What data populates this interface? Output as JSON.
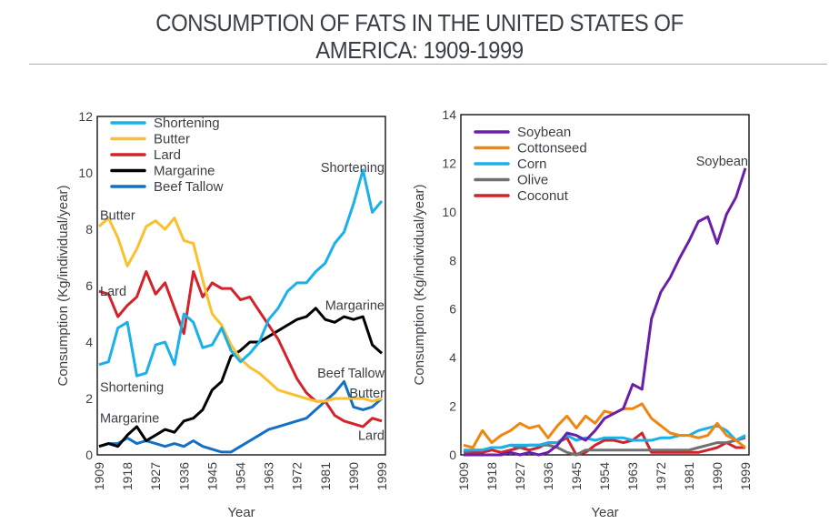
{
  "title_lines": [
    "CONSUMPTION OF FATS IN THE UNITED STATES OF",
    "AMERICA: 1909-1999"
  ],
  "chart_data": [
    {
      "type": "line",
      "title": "",
      "xlabel": "Year",
      "ylabel": "Consumption (Kg/individual/year)",
      "xlim": [
        1909,
        1999
      ],
      "ylim": [
        0,
        12
      ],
      "x_ticks": [
        "1909",
        "1918",
        "1927",
        "1936",
        "1945",
        "1954",
        "1963",
        "1972",
        "1981",
        "1990",
        "1999"
      ],
      "y_ticks": [
        "0",
        "2",
        "4",
        "6",
        "8",
        "10",
        "12"
      ],
      "grid": false,
      "legend_position": "top-left",
      "x": [
        1909,
        1912,
        1915,
        1918,
        1921,
        1924,
        1927,
        1930,
        1933,
        1936,
        1939,
        1942,
        1945,
        1948,
        1951,
        1954,
        1957,
        1960,
        1963,
        1966,
        1969,
        1972,
        1975,
        1978,
        1981,
        1984,
        1987,
        1990,
        1993,
        1996,
        1999
      ],
      "series": [
        {
          "name": "Shortening",
          "color": "#1ab0ea",
          "values": [
            3.2,
            3.3,
            4.5,
            4.7,
            2.8,
            2.9,
            3.9,
            4.0,
            3.2,
            5.0,
            4.7,
            3.8,
            3.9,
            4.5,
            3.7,
            3.3,
            3.6,
            4.0,
            4.8,
            5.2,
            5.8,
            6.1,
            6.1,
            6.5,
            6.8,
            7.5,
            7.9,
            8.9,
            10.1,
            8.6,
            9.0
          ]
        },
        {
          "name": "Butter",
          "color": "#fbc02d",
          "values": [
            8.1,
            8.4,
            7.7,
            6.7,
            7.3,
            8.1,
            8.3,
            8.0,
            8.4,
            7.6,
            7.5,
            6.2,
            5.0,
            4.6,
            3.9,
            3.4,
            3.1,
            2.9,
            2.6,
            2.3,
            2.2,
            2.1,
            2.0,
            1.9,
            1.9,
            2.0,
            2.0,
            2.0,
            2.0,
            1.9,
            2.0
          ]
        },
        {
          "name": "Lard",
          "color": "#d3222a",
          "values": [
            5.8,
            5.7,
            4.9,
            5.3,
            5.6,
            6.5,
            5.7,
            6.1,
            5.2,
            4.3,
            6.5,
            5.6,
            6.1,
            5.9,
            5.9,
            5.5,
            5.6,
            5.1,
            4.6,
            4.1,
            3.4,
            2.7,
            2.2,
            1.9,
            1.9,
            1.4,
            1.2,
            1.1,
            1.0,
            1.3,
            1.2
          ]
        },
        {
          "name": "Margarine",
          "color": "#000000",
          "values": [
            0.3,
            0.4,
            0.3,
            0.7,
            1.0,
            0.5,
            0.7,
            0.9,
            0.8,
            1.2,
            1.3,
            1.6,
            2.3,
            2.6,
            3.5,
            3.7,
            4.0,
            4.0,
            4.2,
            4.4,
            4.6,
            4.8,
            4.9,
            5.2,
            4.8,
            4.7,
            4.9,
            4.8,
            4.9,
            3.9,
            3.6
          ]
        },
        {
          "name": "Beef Tallow",
          "color": "#1470c4",
          "values": [
            0.3,
            0.4,
            0.4,
            0.6,
            0.4,
            0.5,
            0.4,
            0.3,
            0.4,
            0.3,
            0.5,
            0.3,
            0.2,
            0.1,
            0.1,
            0.3,
            0.5,
            0.7,
            0.9,
            1.0,
            1.1,
            1.2,
            1.3,
            1.6,
            1.9,
            2.2,
            2.6,
            1.7,
            1.6,
            1.7,
            2.0
          ]
        }
      ],
      "annotations": [
        {
          "text": "Shortening",
          "x": 1993,
          "y": 10.2
        },
        {
          "text": "Butter",
          "x": 1909,
          "y": 8.5
        },
        {
          "text": "Lard",
          "x": 1909,
          "y": 5.8
        },
        {
          "text": "Shortening",
          "x": 1909,
          "y": 2.4
        },
        {
          "text": "Margarine",
          "x": 1909,
          "y": 1.3
        },
        {
          "text": "Margarine",
          "x": 1990,
          "y": 5.3
        },
        {
          "text": "Beef Tallow",
          "x": 1987,
          "y": 2.9
        },
        {
          "text": "Butter",
          "x": 1993,
          "y": 2.2
        },
        {
          "text": "Lard",
          "x": 1995,
          "y": 0.7
        }
      ]
    },
    {
      "type": "line",
      "title": "",
      "xlabel": "Year",
      "ylabel": "Consumption (Kg/individual/year)",
      "xlim": [
        1909,
        1999
      ],
      "ylim": [
        0,
        14
      ],
      "x_ticks": [
        "1909",
        "1918",
        "1927",
        "1936",
        "1945",
        "1954",
        "1963",
        "1972",
        "1981",
        "1990",
        "1999"
      ],
      "y_ticks": [
        "0",
        "2",
        "4",
        "6",
        "8",
        "10",
        "12",
        "14"
      ],
      "grid": false,
      "legend_position": "top-left",
      "x": [
        1909,
        1912,
        1915,
        1918,
        1921,
        1924,
        1927,
        1930,
        1933,
        1936,
        1939,
        1942,
        1945,
        1948,
        1951,
        1954,
        1957,
        1960,
        1963,
        1966,
        1969,
        1972,
        1975,
        1978,
        1981,
        1984,
        1987,
        1990,
        1993,
        1996,
        1999
      ],
      "series": [
        {
          "name": "Soybean",
          "color": "#6a1fa8",
          "values": [
            0.0,
            0.0,
            0.0,
            0.0,
            0.0,
            0.1,
            0.0,
            0.1,
            0.0,
            0.1,
            0.4,
            0.9,
            0.8,
            0.6,
            1.0,
            1.5,
            1.7,
            1.9,
            2.9,
            2.7,
            5.6,
            6.7,
            7.3,
            8.1,
            8.8,
            9.6,
            9.8,
            8.7,
            9.9,
            10.6,
            11.8
          ]
        },
        {
          "name": "Cottonseed",
          "color": "#f0860f",
          "values": [
            0.4,
            0.3,
            1.0,
            0.5,
            0.8,
            1.0,
            1.3,
            1.1,
            1.2,
            0.7,
            1.2,
            1.6,
            1.1,
            1.6,
            1.3,
            1.8,
            1.7,
            1.9,
            1.9,
            2.1,
            1.5,
            1.2,
            0.9,
            0.8,
            0.8,
            0.7,
            0.8,
            1.3,
            0.8,
            0.6,
            0.3
          ]
        },
        {
          "name": "Corn",
          "color": "#1ab0ea",
          "values": [
            0.2,
            0.2,
            0.2,
            0.3,
            0.3,
            0.4,
            0.4,
            0.4,
            0.4,
            0.5,
            0.5,
            0.8,
            0.6,
            0.7,
            0.6,
            0.7,
            0.7,
            0.7,
            0.6,
            0.6,
            0.6,
            0.7,
            0.7,
            0.8,
            0.8,
            1.0,
            1.1,
            1.2,
            1.0,
            0.6,
            0.8
          ]
        },
        {
          "name": "Olive",
          "color": "#707070",
          "values": [
            0.1,
            0.2,
            0.2,
            0.3,
            0.3,
            0.4,
            0.3,
            0.4,
            0.4,
            0.4,
            0.3,
            0.1,
            0.0,
            0.2,
            0.2,
            0.2,
            0.2,
            0.2,
            0.2,
            0.2,
            0.2,
            0.2,
            0.2,
            0.2,
            0.2,
            0.3,
            0.4,
            0.5,
            0.5,
            0.6,
            0.7
          ]
        },
        {
          "name": "Coconut",
          "color": "#d3222a",
          "values": [
            0.1,
            0.1,
            0.1,
            0.2,
            0.1,
            0.2,
            0.3,
            0.2,
            0.3,
            0.5,
            0.5,
            0.7,
            0.0,
            0.1,
            0.4,
            0.6,
            0.6,
            0.5,
            0.6,
            0.9,
            0.1,
            0.1,
            0.1,
            0.1,
            0.1,
            0.1,
            0.2,
            0.3,
            0.5,
            0.3,
            0.3
          ]
        }
      ],
      "annotations": [
        {
          "text": "Soybean",
          "x": 1991,
          "y": 12.1
        }
      ]
    }
  ]
}
